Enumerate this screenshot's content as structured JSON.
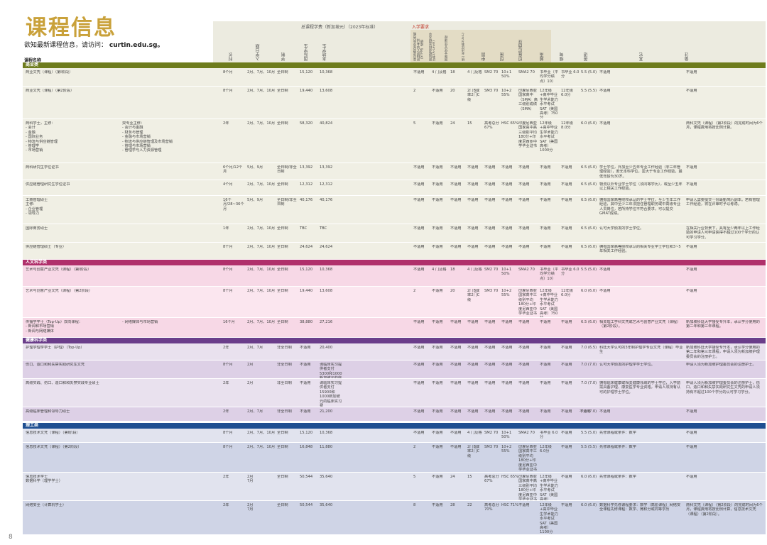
{
  "title": "课程信息",
  "subtitle_prefix": "欲知最新课程信息，请访问：",
  "subtitle_url": "curtin.edu.sg。",
  "page_number": "8",
  "header": {
    "fees_group": "总课程学费（新加坡元）（2023年标准）",
    "req_group": "入学要求",
    "course_name": "课程名称",
    "cols": [
      "时长",
      "入学日期",
      "学制",
      "国际学生",
      "本地学生"
    ],
    "req_cols": [
      "高中或同等学历资格的特定入学考试（STPM）成绩",
      "新加坡剑桥高级水平证书(A-Level)",
      "国际文凭文凭课程",
      "统一考试证书(UEC)",
      "中国",
      "印度",
      "印度尼西亚",
      "越南",
      "缅甸"
    ],
    "tail_cols": [
      "英语",
      "其它",
      "备注"
    ]
  },
  "sections": [
    {
      "label": "商业类",
      "color": "#6e7c1d",
      "rows": [
        {
          "name": "商业文凭（课程）（第I阶段）",
          "dur": "8个月",
          "intake": "2月、7月、10月",
          "mode": "全日制",
          "intl": "15,120",
          "dom": "10,368",
          "alt": "不适用",
          "r2": "4 门及格",
          "r3": "18",
          "r4": "4 门及格",
          "r5": "SM2 70",
          "r6": "10+1 50%",
          "r7": "SMA2 70",
          "r8": "书毕业（平均学分绩点）10）",
          "r9": "书毕业 6.0分",
          "r10": "",
          "eng": "5.5 (5.0)",
          "other": "不适用",
          "note": "不适用"
        },
        {
          "name": "商业文凭（课程）（第2阶段）",
          "dur": "8个月",
          "intake": "2月、7月、10月",
          "mode": "全日制",
          "intl": "19,440",
          "dom": "13,608",
          "alt": "2",
          "r2": "不适用",
          "r3": "20",
          "r4": "2门B或率2门C级",
          "r5": "SM3 70",
          "r6": "10+2 55%",
          "r7": "印度尼西亚国家高中（SMA）高三级别成绩（SMA）",
          "r8": "12年级+高中毕业生学术能力水平考试SAT（美国高考）750分",
          "r9": "12年级 6.0分",
          "r10": "",
          "eng": "5.5 (5.5)",
          "other": "不适用",
          "note": "不适用"
        },
        {
          "name": "商科学士，主修：\n- 会计\n- 金融\n- 国际业务\n- 物流与供应链管理\n- 管理学\n- 市场营销",
          "sub": "双专业主修：\n- 会计与金融\n- 财务与管理\n- 金融与市场营销\n- 物流与供应链管理及市场营销\n- 管理与市场营销\n- 管理学与人力资源管理",
          "dur": "2年",
          "intake": "2月、7月、10月",
          "mode": "全日制",
          "intl": "58,320",
          "dom": "40,824",
          "alt": "5",
          "r2": "不适用",
          "r3": "24",
          "r4": "15",
          "r5": "高考总分67%",
          "r6": "HSC 65%",
          "r7": "印度尼西亚国家高中高三级别平均180分+印度尼西亚中学毕业证书",
          "r8": "12年级+高中毕业生学术能力水平考试SAT（美国高考）1000分",
          "r9": "12年级 8.0分",
          "r10": "",
          "eng": "6.0 (6.0)",
          "other": "不适用",
          "note": "商科文凭（课程）（第2阶段）的完成时间为6个月，课程费用将按比例计算。"
        },
        {
          "name": "商科研究生学位证书",
          "dur": "6个月/12个月",
          "intake": "5月、9月",
          "mode": "全日制/非全日制",
          "intl": "13,392",
          "dom": "13,392",
          "alt": "不适用",
          "r2": "不适用",
          "r3": "不适用",
          "r4": "不适用",
          "r5": "不适用",
          "r6": "不适用",
          "r7": "不适用",
          "r8": "不适用",
          "r9": "不适用",
          "r10": "",
          "eng": "6.5 (6.0)",
          "other": "学士学位，外加至少五年专业工作经验（非三年管理经验），若无本科学位，需大于专业工作经验，最低年龄为30岁。",
          "note": "不适用"
        },
        {
          "name": "供应链管理研究生学位证书",
          "dur": "4个月",
          "intake": "2月、7月、10月",
          "mode": "全日制",
          "intl": "12,312",
          "dom": "12,312",
          "alt": "不适用",
          "r2": "不适用",
          "r3": "不适用",
          "r4": "不适用",
          "r5": "不适用",
          "r6": "不适用",
          "r7": "不适用",
          "r8": "不适用",
          "r9": "不适用",
          "r10": "",
          "eng": "6.5 (6.0)",
          "other": "物流以外专业学士学位（须同等学历），或至少五年以上相关工作经验。",
          "note": "不适用"
        },
        {
          "name": "工商管理硕士\n主修：\n- 企业管理\n- 领导力",
          "dur": "16个月/28~36个月",
          "intake": "5月、9月",
          "mode": "全日制/非全日制",
          "intl": "40,176",
          "dom": "40,176",
          "alt": "不适用",
          "r2": "不适用",
          "r3": "不适用",
          "r4": "不适用",
          "r5": "不适用",
          "r6": "不适用",
          "r7": "不适用",
          "r8": "不适用",
          "r9": "不适用",
          "r10": "",
          "eng": "6.5 (6.0)",
          "other": "拥有国家高等院校承认的学士学位，至少五年工作经验，其中至少三年须担任管理职务或中高级专业人员岗位，若所持学位不符合要求，可以提交GMAT成绩。",
          "note": "申请人需要提交一份最新简历副本。若有管理工作经验，将在评审时予以考虑。"
        },
        {
          "name": "国际商务硕士",
          "dur": "1年",
          "intake": "2月、7月、10月",
          "mode": "全日制",
          "intl": "TBC",
          "dom": "TBC",
          "alt": "不适用",
          "r2": "不适用",
          "r3": "不适用",
          "r4": "不适用",
          "r5": "不适用",
          "r6": "不适用",
          "r7": "不适用",
          "r8": "不适用",
          "r9": "不适用",
          "r10": "",
          "eng": "6.5 (6.0)",
          "other": "认可大学颁发的学士学位。",
          "note": "在相关行业背景下，具有至少两年以上工作经验的申请人可申请获得不超过100个学分的认可学习学分。"
        },
        {
          "name": "供应链管理硕士（专业）",
          "dur": "8个月",
          "intake": "2月、7月、10月",
          "mode": "全日制",
          "intl": "24,624",
          "dom": "24,624",
          "alt": "不适用",
          "r2": "不适用",
          "r3": "不适用",
          "r4": "不适用",
          "r5": "不适用",
          "r6": "不适用",
          "r7": "不适用",
          "r8": "不适用",
          "r9": "不适用",
          "r10": "",
          "eng": "6.5 (6.0)",
          "other": "拥有国家高等院校承认的相关专业学士学位和3~5年相关工作经验。",
          "note": "不适用"
        }
      ]
    },
    {
      "label": "人文科学类",
      "color": "#b0306b",
      "rows": [
        {
          "name": "艺术与创意产业文凭（课程）（第I阶段）",
          "dur": "8个月",
          "intake": "2月、7月、10月",
          "mode": "全日制",
          "intl": "15,120",
          "dom": "10,368",
          "alt": "不适用",
          "r2": "4 门及格",
          "r3": "18",
          "r4": "4 门及格",
          "r5": "SM2 70",
          "r6": "10+1 50%",
          "r7": "SMA2 70",
          "r8": "书毕业（平均学分绩点）10）",
          "r9": "书毕业 6.0分",
          "r10": "",
          "eng": "5.5 (5.0)",
          "other": "不适用",
          "note": "不适用"
        },
        {
          "name": "艺术与创意产业文凭（课程）（第2阶段）",
          "dur": "8个月",
          "intake": "2月、7月、10月",
          "mode": "全日制",
          "intl": "19,440",
          "dom": "13,608",
          "alt": "2",
          "r2": "不适用",
          "r3": "20",
          "r4": "2门B或率2门C级",
          "r5": "SM3 70",
          "r6": "10+2 55%",
          "r7": "印度尼西亚国家高中三级别平均180分+印度尼西亚中学毕业证书",
          "r8": "12年级+高中毕业生学术能力水平考试SAT（美国高考）750分",
          "r9": "12年级 6.0分",
          "r10": "",
          "eng": "6.0 (6.0)",
          "other": "不适用",
          "note": "不适用"
        },
        {
          "name": "传播学学士（Top-Up）双向课程：\n- 新闻和市场营销\n- 新闻与网络媒体",
          "sub": "- 网络媒体与市场营销",
          "dur": "16个月",
          "intake": "2月、7月、10月",
          "mode": "全日制",
          "intl": "38,880",
          "dom": "27,216",
          "alt": "不适用",
          "r2": "不适用",
          "r3": "不适用",
          "r4": "不适用",
          "r5": "不适用",
          "r6": "不适用",
          "r7": "不适用",
          "r8": "不适用",
          "r9": "不适用",
          "r10": "",
          "eng": "6.5 (6.0)",
          "other": "相关理工学科文凭或艺术与创意产业文凭（课程）（第2阶段）。",
          "note": "新加坡科廷大学接受专升本，承认学分使用的第二年和第三年课程。"
        }
      ]
    },
    {
      "label": "健康科学类",
      "color": "#6a3d8a",
      "rows": [
        {
          "name": "护理学理学学士（护理）（Top-Up）",
          "dur": "2年",
          "intake": "2月、7月",
          "mode": "非全日制",
          "intl": "不适用",
          "dom": "20,400",
          "alt": "不适用",
          "r2": "不适用",
          "r3": "不适用",
          "r4": "不适用",
          "r5": "不适用",
          "r6": "不适用",
          "r7": "不适用",
          "r8": "不适用",
          "r9": "不适用",
          "r10": "",
          "eng": "7.0 (6.5)",
          "other": "科廷大学认可的3年制护理学专业文凭（课程）毕业生",
          "note": "新加坡科廷大学接受专升本，承认学分使用的第二年和第三年课程，申请人须为新加坡护理委员会的注册护士。"
        },
        {
          "name": "伤口、造口和和失禁实践研究生文凭",
          "dur": "8个月",
          "intake": "2月",
          "mode": "非全日制",
          "intl": "不适用",
          "dom": "询临床实习提供者支付5300和1000新加坡元的临床实习费",
          "alt": "不适用",
          "r2": "不适用",
          "r3": "不适用",
          "r4": "不适用",
          "r5": "不适用",
          "r6": "不适用",
          "r7": "不适用",
          "r8": "不适用",
          "r9": "不适用",
          "r10": "",
          "eng": "7.0 (7.0)",
          "other": "认可大学颁发的护理学学士学位。",
          "note": "申请人须为新加坡护理委员会的注册护士。"
        },
        {
          "name": "高级实践、伤口、造口和和失禁实践专业硕士",
          "dur": "2年",
          "intake": "2月",
          "mode": "非全日制",
          "intl": "不适用",
          "dom": "询临床实习提供者支付15900和1000新加坡元的临床实习费",
          "alt": "不适用",
          "r2": "不适用",
          "r3": "不适用",
          "r4": "不适用",
          "r5": "不适用",
          "r6": "不适用",
          "r7": "不适用",
          "r8": "不适用",
          "r9": "不适用",
          "r10": "",
          "eng": "7.0 (7.0)",
          "other": "拥有临床健康或相关健康领域的学士学位，入学前需具备护理、康复医学专业资格，申请人须持有认可的护理学士学位。",
          "note": "申请人须为新加坡护理委员会的注册护士，伤口、造口和和失禁实践研究生文凭的申请人须持有不超过100个学分的认可学习学分。"
        },
        {
          "name": "高级临床管理和领导力硕士",
          "dur": "2年",
          "intake": "2月、7月",
          "mode": "非全日制",
          "intl": "不适用",
          "dom": "21,200",
          "alt": "不适用",
          "r2": "不适用",
          "r3": "不适用",
          "r4": "不适用",
          "r5": "不适用",
          "r6": "不适用",
          "r7": "不适用",
          "r8": "不适用",
          "r9": "不适用",
          "r10": "不适用",
          "eng": "7.0 (7.0)",
          "other": "不适用",
          "note": "不适用"
        }
      ]
    },
    {
      "label": "理工类",
      "color": "#1f4f91",
      "rows": [
        {
          "name": "信息技术文凭（课程）（第I阶段）",
          "dur": "8个月",
          "intake": "2月、7月、10月",
          "mode": "全日制",
          "intl": "15,120",
          "dom": "10,368",
          "alt": "不适用",
          "r2": "不适用",
          "r3": "不适用",
          "r4": "4 门及格",
          "r5": "SM2 70",
          "r6": "10+1 50%",
          "r7": "SMA2 70",
          "r8": "书毕业 6.0分",
          "r9": "不适用",
          "r10": "",
          "eng": "5.5 (5.0)",
          "other": "先修课程或条件：数学",
          "note": "不适用"
        },
        {
          "name": "信息技术文凭（课程）（第2阶段）",
          "dur": "8个月",
          "intake": "2月、7月、10月",
          "mode": "全日制",
          "intl": "16,848",
          "dom": "11,880",
          "alt": "2",
          "r2": "不适用",
          "r3": "不适用",
          "r4": "2门B或率2门C级",
          "r5": "SM3 70",
          "r6": "10+2 55%",
          "r7": "印度尼西亚国家高中三级别平均180分+印度尼西亚中学毕业证书",
          "r8": "12年级 6.0分",
          "r9": "不适用",
          "r10": "",
          "eng": "5.5 (5.5)",
          "other": "先修课程或条件：数学",
          "note": "不适用"
        },
        {
          "name": "信息技术学士\n数据科学（理学学士）",
          "dur": "2年",
          "intake": "2月\n7月",
          "mode": "全日制",
          "intl": "50,544",
          "dom": "35,640",
          "alt": "5",
          "r2": "不适用",
          "r3": "24",
          "r4": "15",
          "r5": "高考总分67%",
          "r6": "HSC 65%",
          "r7": "印度尼西亚国家高中高三级别平均180分+印度尼西亚中学毕业证书",
          "r8": "12年级+高中毕业生学术能力水平考试SAT（美国高考）1000分",
          "r9": "不适用",
          "r10": "",
          "eng": "6.0 (6.0)",
          "other": "先修课程或条件：数学",
          "note": "不适用"
        },
        {
          "name": "网络安全（计算机学士）",
          "dur": "2年",
          "intake": "2月\n7月",
          "mode": "全日制",
          "intl": "50,544",
          "dom": "35,640",
          "alt": "8",
          "r2": "不适用",
          "r3": "28",
          "r4": "22",
          "r5": "高考总分70%",
          "r6": "HSC 71%",
          "r7": "不适用",
          "r8": "12年级+高中毕业生学术能力水平考试SAT（美国高考）1100分",
          "r9": "不适用",
          "r10": "",
          "eng": "6.0 (6.0)",
          "other": "数据科学先修课程要求：数学（高阶课程）网络安全课程先修课程：数学、微积分或同等学历",
          "note": "商科文凭（课程）（第2阶段）的完成时间为6个月，课程费用将按比例计算，信息技术文凭（课程）（第2阶段）。"
        }
      ]
    }
  ]
}
